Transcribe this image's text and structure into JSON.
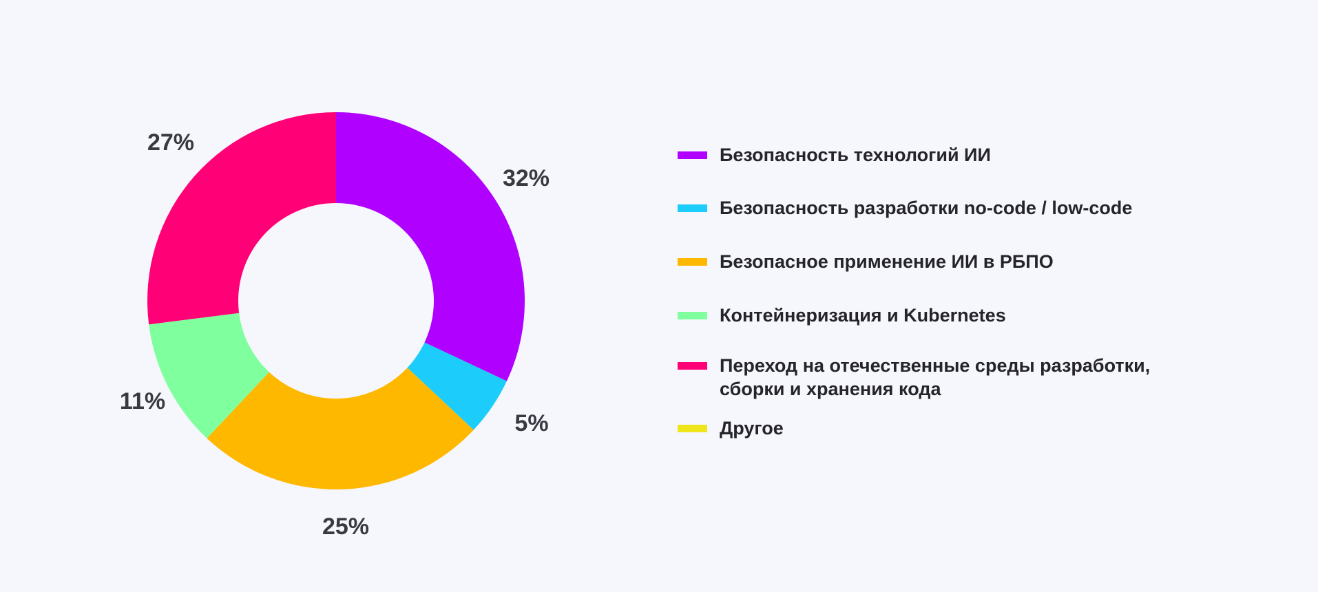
{
  "chart_data": {
    "type": "pie",
    "title": "",
    "slices": [
      {
        "label": "Безопасность технологий ИИ",
        "value": 32,
        "value_label": "32%",
        "color": "#b000ff"
      },
      {
        "label": "Безопасность разработки no-code / low-code",
        "value": 5,
        "value_label": "5%",
        "color": "#1ccdfb"
      },
      {
        "label": "Безопасное применение ИИ в РБПО",
        "value": 25,
        "value_label": "25%",
        "color": "#ffb800"
      },
      {
        "label": "Контейнеризация и Kubernetes",
        "value": 11,
        "value_label": "11%",
        "color": "#80ff9e"
      },
      {
        "label": "Переход на отечественные среды разработки,\nсборки и хранения кода",
        "value": 27,
        "value_label": "27%",
        "color": "#ff0076"
      },
      {
        "label": "Другое",
        "value": 0,
        "value_label": "",
        "color": "#eee51a"
      }
    ],
    "legend_position": "right",
    "style": "donut"
  }
}
